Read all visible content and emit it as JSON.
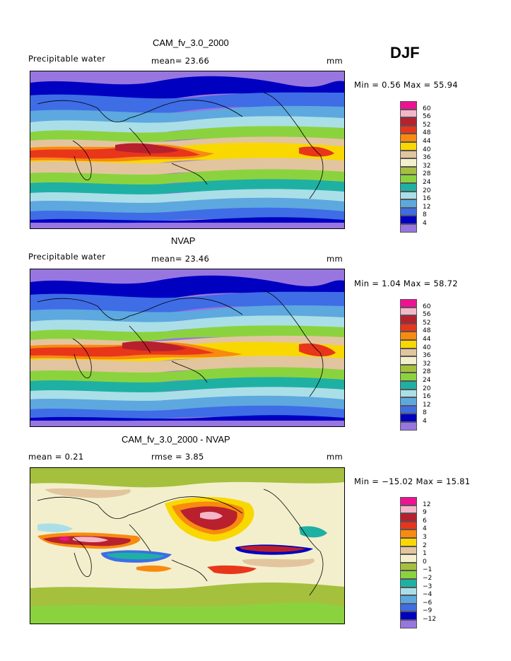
{
  "season": "DJF",
  "panels": [
    {
      "title": "CAM_fv_3.0_2000",
      "left": "Precipitable water",
      "middle": "mean=  23.66",
      "unit": "mm",
      "stats": "Min =   0.56 Max =  55.94",
      "legend": {
        "labels": [
          "60",
          "56",
          "52",
          "48",
          "44",
          "40",
          "36",
          "32",
          "28",
          "24",
          "20",
          "16",
          "12",
          "8",
          "4"
        ],
        "colors": [
          "#ee1193",
          "#f4b6c8",
          "#b8202e",
          "#e8361b",
          "#f88a10",
          "#f8d800",
          "#e2c59e",
          "#f3efcc",
          "#a5c03d",
          "#8bd33e",
          "#1fb0a4",
          "#aadfe8",
          "#5da8df",
          "#3e6de6",
          "#0000c0",
          "#9876e0"
        ]
      }
    },
    {
      "title": "NVAP",
      "left": "Precipitable water",
      "middle": "mean=  23.46",
      "unit": "mm",
      "stats": "Min =   1.04 Max =  58.72",
      "legend": {
        "labels": [
          "60",
          "56",
          "52",
          "48",
          "44",
          "40",
          "36",
          "32",
          "28",
          "24",
          "20",
          "16",
          "12",
          "8",
          "4"
        ],
        "colors": [
          "#ee1193",
          "#f4b6c8",
          "#b8202e",
          "#e8361b",
          "#f88a10",
          "#f8d800",
          "#e2c59e",
          "#f3efcc",
          "#a5c03d",
          "#8bd33e",
          "#1fb0a4",
          "#aadfe8",
          "#5da8df",
          "#3e6de6",
          "#0000c0",
          "#9876e0"
        ]
      }
    },
    {
      "title": "CAM_fv_3.0_2000 - NVAP",
      "left": "mean =    0.21",
      "middle": "rmse =    3.85",
      "unit": "mm",
      "stats": "Min = −15.02 Max =  15.81",
      "legend": {
        "labels": [
          "12",
          "9",
          "6",
          "4",
          "3",
          "2",
          "1",
          "0",
          "−1",
          "−2",
          "−3",
          "−4",
          "−6",
          "−9",
          "−12"
        ],
        "colors": [
          "#ee1193",
          "#f4b6c8",
          "#b8202e",
          "#e8361b",
          "#f88a10",
          "#f8d800",
          "#e2c59e",
          "#f3efcc",
          "#a5c03d",
          "#8bd33e",
          "#1fb0a4",
          "#aadfe8",
          "#5da8df",
          "#3e6de6",
          "#0000c0",
          "#9876e0"
        ]
      }
    }
  ]
}
